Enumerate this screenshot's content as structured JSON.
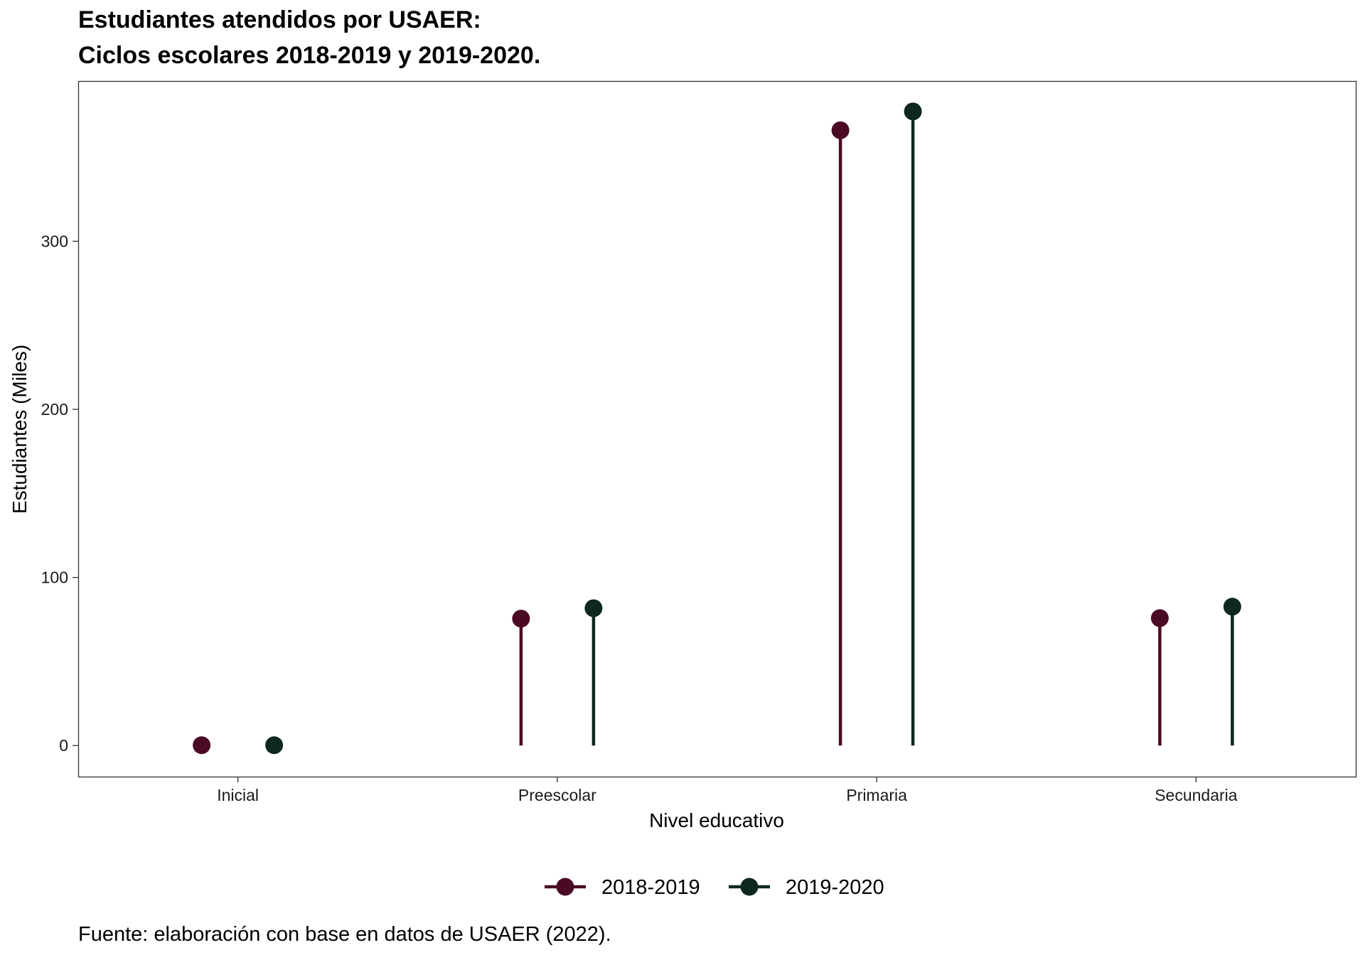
{
  "chart_data": {
    "type": "lollipop",
    "title_lines": [
      "Estudiantes atendidos por USAER:",
      "Ciclos escolares 2018-2019 y 2019-2020."
    ],
    "xlabel": "Nivel educativo",
    "ylabel": "Estudiantes (Miles)",
    "categories": [
      "Inicial",
      "Preescolar",
      "Primaria",
      "Secundaria"
    ],
    "series": [
      {
        "name": "2018-2019",
        "color": "#4a0a26",
        "values": [
          0.2,
          75.5,
          366.0,
          75.8
        ]
      },
      {
        "name": "2019-2020",
        "color": "#0e2820",
        "values": [
          0.2,
          81.7,
          377.2,
          82.6
        ]
      }
    ],
    "yticks": [
      0,
      100,
      200,
      300
    ],
    "ylim": [
      -18.5,
      395.3
    ],
    "grid": false,
    "legend_position": "bottom",
    "caption": "Fuente: elaboración con base en datos de USAER (2022)."
  }
}
